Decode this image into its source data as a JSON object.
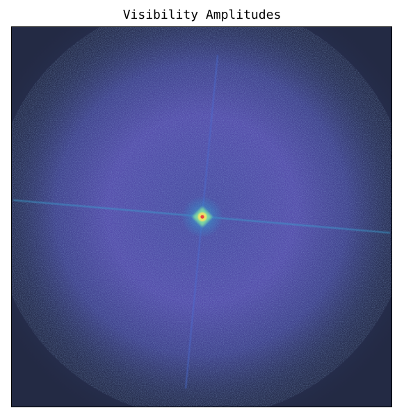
{
  "chart_data": {
    "type": "heatmap",
    "title": "Visibility Amplitudes",
    "xlabel": "",
    "ylabel": "",
    "axes_ticks": "none",
    "grid": false,
    "colormap": [
      "#232a44",
      "#3a3f79",
      "#5b55b8",
      "#3f7fcf",
      "#2fb5c6",
      "#7fd6a3",
      "#e8e36a",
      "#f0604a"
    ],
    "features": {
      "central_peak": "bright compact source at the center, yellow core with red peak, cyan halo",
      "diffuse_envelope": "noisy purple disk filling most of the frame, fading to dark navy at the edges",
      "streaks": [
        "faint near-horizontal cyan streak through the center",
        "faint near-vertical blue streak through the center"
      ]
    }
  }
}
